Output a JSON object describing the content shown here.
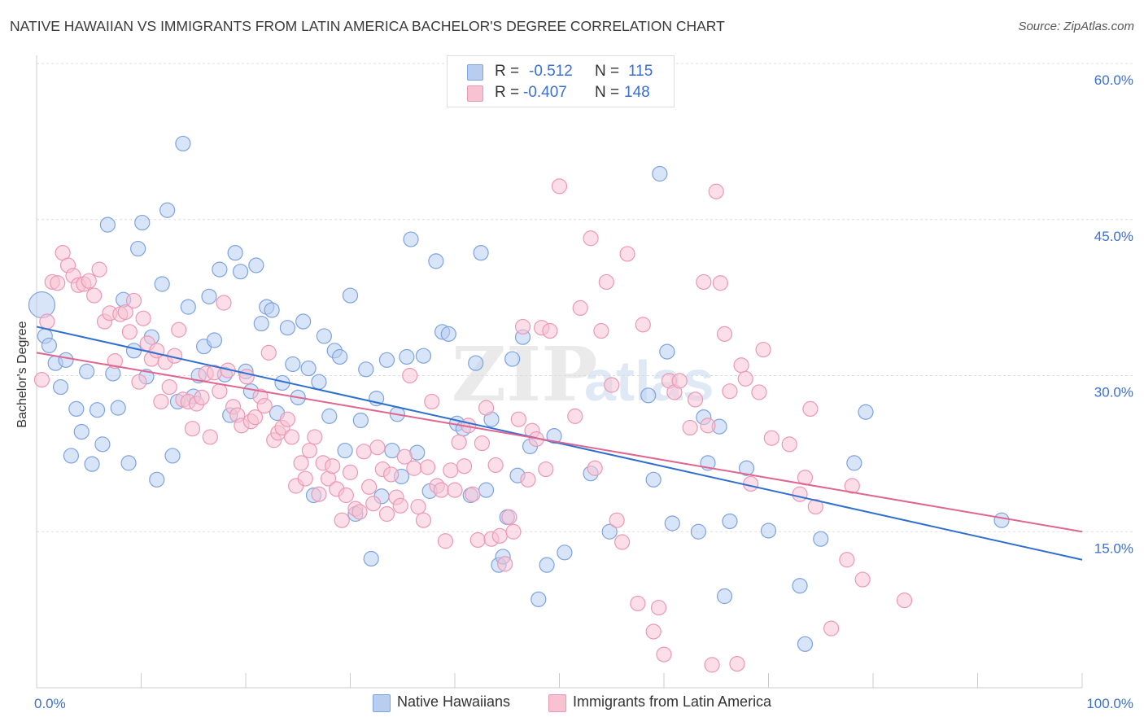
{
  "title": "NATIVE HAWAIIAN VS IMMIGRANTS FROM LATIN AMERICA BACHELOR'S DEGREE CORRELATION CHART",
  "source": "Source: ZipAtlas.com",
  "watermark": "ZIPatlas",
  "colors": {
    "blue_fill": "#b8cdf0",
    "blue_stroke": "#7ea3e0",
    "blue_line": "#2f6fd0",
    "pink_fill": "#f7c3d3",
    "pink_stroke": "#ec98b4",
    "pink_line": "#e06590",
    "tick_label": "#3b6fd1",
    "grid": "#dddddd"
  },
  "legend": {
    "rows": [
      {
        "r_label": "R =",
        "r_value": "-0.512",
        "n_label": "N =",
        "n_value": "115"
      },
      {
        "r_label": "R =",
        "r_value": "-0.407",
        "n_label": "N =",
        "n_value": "148"
      }
    ]
  },
  "chart_data": {
    "type": "scatter",
    "ylabel": "Bachelor's Degree",
    "xlim": [
      0,
      100
    ],
    "ylim": [
      0,
      60
    ],
    "x_tick_labels": [
      "0.0%",
      "100.0%"
    ],
    "y_ticks": [
      15,
      30,
      45,
      60
    ],
    "y_tick_labels": [
      "15.0%",
      "30.0%",
      "45.0%",
      "60.0%"
    ],
    "grid": "horizontal dashed",
    "legend_position": "top-center",
    "series": [
      {
        "name": "Native Hawaiians",
        "trendline": {
          "x": [
            0,
            100
          ],
          "y": [
            34.7,
            12.3
          ]
        },
        "points": [
          [
            0.5,
            36.8
          ],
          [
            0.8,
            33.8
          ],
          [
            1.2,
            32.9
          ],
          [
            1.8,
            31.2
          ],
          [
            2.3,
            28.9
          ],
          [
            2.8,
            31.5
          ],
          [
            3.3,
            22.3
          ],
          [
            3.8,
            26.8
          ],
          [
            4.3,
            24.6
          ],
          [
            4.8,
            30.4
          ],
          [
            5.3,
            21.5
          ],
          [
            5.8,
            26.7
          ],
          [
            6.3,
            23.4
          ],
          [
            6.8,
            44.5
          ],
          [
            7.3,
            30.2
          ],
          [
            7.8,
            26.9
          ],
          [
            8.3,
            37.3
          ],
          [
            8.8,
            21.6
          ],
          [
            9.3,
            32.4
          ],
          [
            9.7,
            42.2
          ],
          [
            10.1,
            44.7
          ],
          [
            10.5,
            29.9
          ],
          [
            11.0,
            33.7
          ],
          [
            11.5,
            20.0
          ],
          [
            12.0,
            38.8
          ],
          [
            12.5,
            45.9
          ],
          [
            13.0,
            22.3
          ],
          [
            13.5,
            27.5
          ],
          [
            14.0,
            52.3
          ],
          [
            14.5,
            36.6
          ],
          [
            15.0,
            28.0
          ],
          [
            15.5,
            30.0
          ],
          [
            16.0,
            32.8
          ],
          [
            16.5,
            37.6
          ],
          [
            17.0,
            33.4
          ],
          [
            17.5,
            40.2
          ],
          [
            18.0,
            30.1
          ],
          [
            18.5,
            26.2
          ],
          [
            19.0,
            41.8
          ],
          [
            19.5,
            40.0
          ],
          [
            20.0,
            30.4
          ],
          [
            20.5,
            28.5
          ],
          [
            21.0,
            40.6
          ],
          [
            21.5,
            35.0
          ],
          [
            22.0,
            36.6
          ],
          [
            22.5,
            36.3
          ],
          [
            23.0,
            26.4
          ],
          [
            23.5,
            29.3
          ],
          [
            24.0,
            34.6
          ],
          [
            24.5,
            31.1
          ],
          [
            25.0,
            27.9
          ],
          [
            25.5,
            35.2
          ],
          [
            26.0,
            30.7
          ],
          [
            26.5,
            18.5
          ],
          [
            27.0,
            29.4
          ],
          [
            27.5,
            33.8
          ],
          [
            28.0,
            26.1
          ],
          [
            28.5,
            32.4
          ],
          [
            29.0,
            31.8
          ],
          [
            29.5,
            22.8
          ],
          [
            30.0,
            37.7
          ],
          [
            30.5,
            16.7
          ],
          [
            31.0,
            25.7
          ],
          [
            31.5,
            30.6
          ],
          [
            32.0,
            12.4
          ],
          [
            32.5,
            27.8
          ],
          [
            33.0,
            18.4
          ],
          [
            33.5,
            31.5
          ],
          [
            34.0,
            22.8
          ],
          [
            34.5,
            26.3
          ],
          [
            34.9,
            20.3
          ],
          [
            35.4,
            31.8
          ],
          [
            35.8,
            43.1
          ],
          [
            36.4,
            22.6
          ],
          [
            37.0,
            31.9
          ],
          [
            37.6,
            18.9
          ],
          [
            38.2,
            41.0
          ],
          [
            38.8,
            34.2
          ],
          [
            39.4,
            34.0
          ],
          [
            40.2,
            25.4
          ],
          [
            40.8,
            24.9
          ],
          [
            41.5,
            18.5
          ],
          [
            42.0,
            31.2
          ],
          [
            42.5,
            41.8
          ],
          [
            43.0,
            19.0
          ],
          [
            43.5,
            25.8
          ],
          [
            44.2,
            11.8
          ],
          [
            44.6,
            12.6
          ],
          [
            45.0,
            16.4
          ],
          [
            45.5,
            31.6
          ],
          [
            46.0,
            20.4
          ],
          [
            46.5,
            33.7
          ],
          [
            47.2,
            23.2
          ],
          [
            48.0,
            8.5
          ],
          [
            48.8,
            11.8
          ],
          [
            49.5,
            24.2
          ],
          [
            50.5,
            13.0
          ],
          [
            53.0,
            20.6
          ],
          [
            54.8,
            15.0
          ],
          [
            58.5,
            28.1
          ],
          [
            59.0,
            20.0
          ],
          [
            59.6,
            49.4
          ],
          [
            60.3,
            32.3
          ],
          [
            60.8,
            15.8
          ],
          [
            63.3,
            15.0
          ],
          [
            63.8,
            26.0
          ],
          [
            64.2,
            21.6
          ],
          [
            65.3,
            25.1
          ],
          [
            65.8,
            8.8
          ],
          [
            66.3,
            16.0
          ],
          [
            67.9,
            21.1
          ],
          [
            70.0,
            15.1
          ],
          [
            73.0,
            9.8
          ],
          [
            73.5,
            4.2
          ],
          [
            75.0,
            14.3
          ],
          [
            78.2,
            21.6
          ],
          [
            79.3,
            26.5
          ],
          [
            92.3,
            16.1
          ]
        ]
      },
      {
        "name": "Immigrants from Latin America",
        "trendline": {
          "x": [
            0,
            100
          ],
          "y": [
            32.2,
            15.0
          ]
        },
        "points": [
          [
            0.5,
            29.6
          ],
          [
            1.0,
            35.2
          ],
          [
            1.5,
            39.0
          ],
          [
            2.0,
            38.9
          ],
          [
            2.5,
            41.8
          ],
          [
            3.0,
            40.6
          ],
          [
            3.5,
            39.6
          ],
          [
            4.0,
            38.7
          ],
          [
            4.5,
            38.8
          ],
          [
            5.0,
            39.1
          ],
          [
            5.5,
            37.7
          ],
          [
            6.0,
            40.2
          ],
          [
            6.5,
            35.2
          ],
          [
            7.0,
            36.0
          ],
          [
            7.5,
            31.4
          ],
          [
            8.0,
            35.9
          ],
          [
            8.5,
            36.1
          ],
          [
            8.9,
            34.2
          ],
          [
            9.3,
            37.2
          ],
          [
            9.8,
            29.4
          ],
          [
            10.2,
            35.5
          ],
          [
            10.6,
            33.1
          ],
          [
            11.0,
            31.6
          ],
          [
            11.5,
            32.4
          ],
          [
            11.9,
            27.5
          ],
          [
            12.3,
            31.3
          ],
          [
            12.7,
            28.9
          ],
          [
            13.2,
            31.9
          ],
          [
            13.6,
            34.4
          ],
          [
            14.0,
            27.7
          ],
          [
            14.5,
            27.5
          ],
          [
            14.9,
            24.9
          ],
          [
            15.3,
            27.3
          ],
          [
            15.8,
            27.9
          ],
          [
            16.2,
            30.2
          ],
          [
            16.6,
            24.1
          ],
          [
            17.0,
            30.3
          ],
          [
            17.5,
            28.5
          ],
          [
            17.9,
            37.0
          ],
          [
            18.3,
            30.5
          ],
          [
            18.8,
            27.0
          ],
          [
            19.2,
            26.2
          ],
          [
            19.6,
            25.2
          ],
          [
            20.1,
            29.9
          ],
          [
            20.5,
            25.6
          ],
          [
            20.9,
            26.0
          ],
          [
            21.4,
            28.0
          ],
          [
            21.8,
            27.1
          ],
          [
            22.2,
            32.2
          ],
          [
            22.7,
            23.8
          ],
          [
            23.1,
            24.5
          ],
          [
            23.5,
            25.0
          ],
          [
            24.0,
            25.8
          ],
          [
            24.4,
            24.1
          ],
          [
            24.8,
            19.4
          ],
          [
            25.3,
            21.6
          ],
          [
            25.7,
            20.1
          ],
          [
            26.1,
            22.8
          ],
          [
            26.6,
            24.1
          ],
          [
            27.0,
            18.6
          ],
          [
            27.4,
            21.6
          ],
          [
            27.9,
            20.1
          ],
          [
            28.3,
            21.3
          ],
          [
            28.7,
            19.1
          ],
          [
            29.2,
            16.1
          ],
          [
            29.6,
            18.5
          ],
          [
            30.0,
            20.7
          ],
          [
            30.5,
            17.2
          ],
          [
            30.9,
            16.9
          ],
          [
            31.3,
            22.7
          ],
          [
            31.8,
            19.3
          ],
          [
            32.2,
            17.7
          ],
          [
            32.6,
            23.1
          ],
          [
            33.1,
            21.0
          ],
          [
            33.5,
            16.7
          ],
          [
            33.9,
            20.5
          ],
          [
            34.4,
            18.3
          ],
          [
            34.8,
            17.5
          ],
          [
            35.2,
            22.2
          ],
          [
            35.7,
            30.0
          ],
          [
            36.1,
            21.1
          ],
          [
            36.5,
            17.4
          ],
          [
            37.0,
            16.1
          ],
          [
            37.4,
            21.2
          ],
          [
            37.8,
            27.5
          ],
          [
            38.3,
            19.4
          ],
          [
            38.7,
            19.0
          ],
          [
            39.1,
            14.1
          ],
          [
            39.6,
            20.9
          ],
          [
            40.0,
            19.0
          ],
          [
            40.4,
            23.6
          ],
          [
            40.9,
            21.3
          ],
          [
            41.3,
            25.2
          ],
          [
            41.7,
            18.6
          ],
          [
            42.2,
            14.2
          ],
          [
            42.6,
            23.5
          ],
          [
            43.0,
            26.9
          ],
          [
            43.5,
            14.3
          ],
          [
            43.9,
            21.4
          ],
          [
            44.3,
            14.6
          ],
          [
            44.8,
            11.9
          ],
          [
            45.2,
            16.4
          ],
          [
            45.6,
            15.0
          ],
          [
            46.1,
            25.8
          ],
          [
            46.5,
            34.7
          ],
          [
            47.0,
            20.0
          ],
          [
            47.4,
            24.7
          ],
          [
            47.8,
            23.9
          ],
          [
            48.3,
            34.6
          ],
          [
            48.7,
            21.0
          ],
          [
            49.1,
            34.3
          ],
          [
            50.0,
            48.2
          ],
          [
            51.5,
            26.1
          ],
          [
            52.0,
            36.5
          ],
          [
            53.0,
            43.2
          ],
          [
            53.4,
            21.1
          ],
          [
            54.0,
            34.3
          ],
          [
            54.5,
            39.0
          ],
          [
            55.0,
            29.1
          ],
          [
            55.5,
            16.1
          ],
          [
            56.0,
            14.0
          ],
          [
            56.5,
            41.7
          ],
          [
            57.5,
            8.1
          ],
          [
            58.0,
            34.9
          ],
          [
            59.0,
            5.4
          ],
          [
            59.5,
            7.7
          ],
          [
            60.0,
            3.2
          ],
          [
            60.5,
            29.5
          ],
          [
            61.0,
            28.4
          ],
          [
            61.5,
            29.5
          ],
          [
            62.5,
            25.0
          ],
          [
            63.0,
            27.7
          ],
          [
            63.8,
            39.0
          ],
          [
            64.2,
            25.2
          ],
          [
            64.6,
            2.2
          ],
          [
            65.0,
            47.7
          ],
          [
            65.4,
            38.9
          ],
          [
            65.8,
            34.0
          ],
          [
            66.3,
            28.5
          ],
          [
            67.0,
            2.3
          ],
          [
            67.4,
            31.0
          ],
          [
            67.8,
            29.7
          ],
          [
            68.3,
            19.6
          ],
          [
            69.1,
            28.4
          ],
          [
            69.5,
            32.5
          ],
          [
            70.3,
            24.0
          ],
          [
            72.0,
            23.4
          ],
          [
            73.0,
            18.6
          ],
          [
            73.5,
            20.2
          ],
          [
            74.0,
            26.8
          ],
          [
            74.5,
            17.4
          ],
          [
            76.0,
            5.7
          ],
          [
            77.5,
            12.3
          ],
          [
            78.0,
            19.4
          ],
          [
            79.0,
            10.4
          ],
          [
            83.0,
            8.4
          ]
        ]
      }
    ]
  },
  "bottom_legend": [
    "Native Hawaiians",
    "Immigrants from Latin America"
  ]
}
